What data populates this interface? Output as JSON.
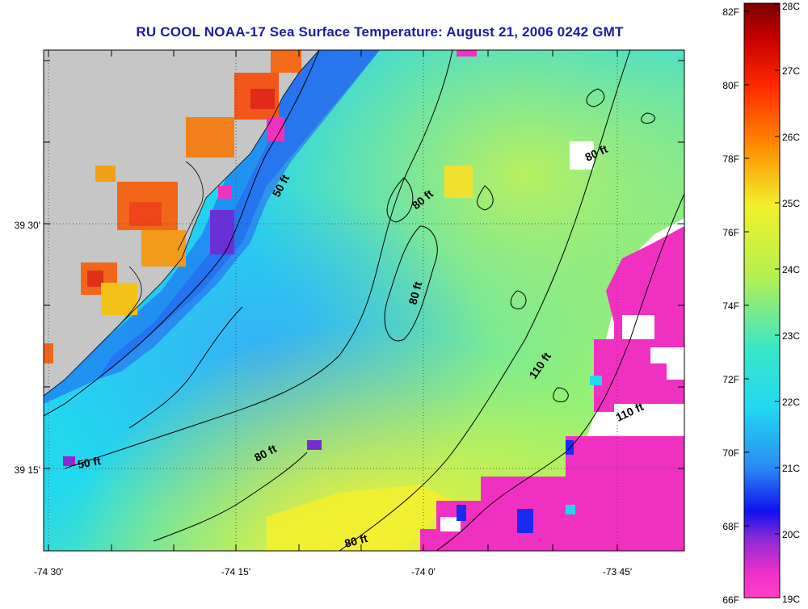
{
  "title": "RU COOL  NOAA-17  Sea Surface Temperature:  August 21, 2006 0242 GMT",
  "map": {
    "lat_labels": [
      "39 30'",
      "39 15'"
    ],
    "lon_labels": [
      "-74 30'",
      "-74 15'",
      "-74 0'",
      "-73 45'"
    ],
    "contour_labels": [
      "50 ft",
      "80 ft",
      "80 ft",
      "80 ft",
      "110 ft",
      "110 ft",
      "50 ft",
      "80 ft",
      "80 ft"
    ],
    "colors": {
      "land": "#c6c6c6",
      "no_data": "#ffffff",
      "grid": "#555555"
    }
  },
  "colorbar": {
    "fahrenheit_labels": [
      "82F",
      "80F",
      "78F",
      "76F",
      "74F",
      "72F",
      "70F",
      "68F",
      "66F"
    ],
    "celsius_labels": [
      "28C",
      "27C",
      "26C",
      "25C",
      "24C",
      "23C",
      "22C",
      "21C",
      "20C",
      "19C"
    ]
  }
}
